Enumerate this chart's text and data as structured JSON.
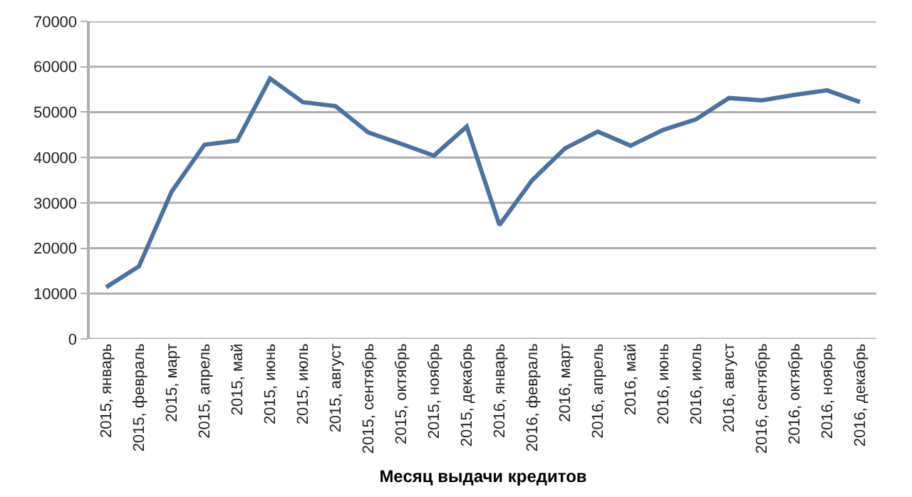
{
  "chart_data": {
    "type": "line",
    "xlabel": "Месяц выдачи кредитов",
    "categories": [
      "2015, январь",
      "2015, февраль",
      "2015, март",
      "2015, апрель",
      "2015, май",
      "2015, июнь",
      "2015, июль",
      "2015, август",
      "2015, сентябрь",
      "2015, октябрь",
      "2015, ноябрь",
      "2015, декабрь",
      "2016, январь",
      "2016, февраль",
      "2016, март",
      "2016, апрель",
      "2016, май",
      "2016, июнь",
      "2016, июль",
      "2016, август",
      "2016, сентябрь",
      "2016, октябрь",
      "2016, ноябрь",
      "2016, декабрь"
    ],
    "series": [
      {
        "color": "#4a72a0",
        "values": [
          11400,
          16000,
          32500,
          42800,
          43700,
          57400,
          52200,
          51300,
          45500,
          43000,
          40400,
          46800,
          25100,
          35000,
          42000,
          45700,
          42600,
          46100,
          48400,
          53100,
          52600,
          53800,
          54800,
          52200
        ]
      }
    ],
    "ylim": [
      0,
      70000
    ],
    "yticks": [
      0,
      10000,
      20000,
      30000,
      40000,
      50000,
      60000,
      70000
    ],
    "grid": "y",
    "marker": "none",
    "line_style": "solid"
  }
}
